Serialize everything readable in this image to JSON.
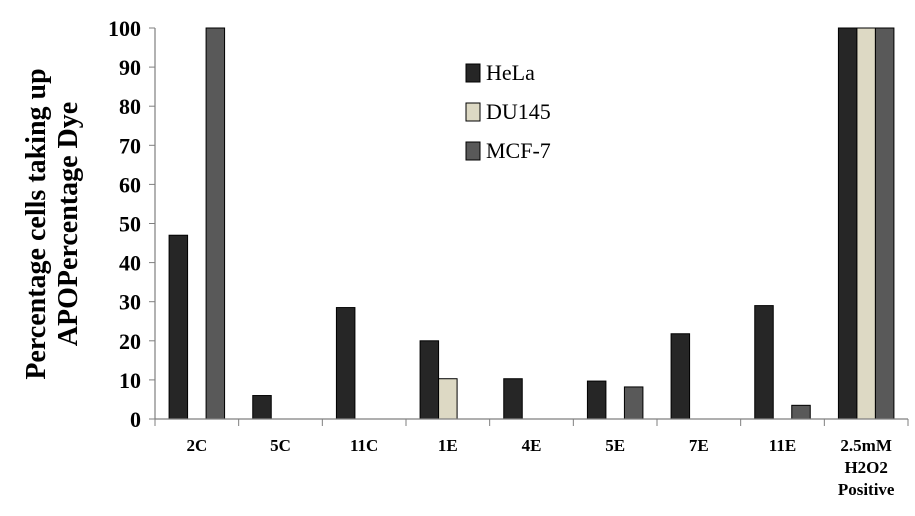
{
  "chart_data": {
    "type": "bar",
    "title": "",
    "ylabel_lines": [
      "Percentage cells taking up",
      "APOPercentage Dye"
    ],
    "xlabel": "",
    "ylim": [
      0,
      100
    ],
    "yticks": [
      0,
      10,
      20,
      30,
      40,
      50,
      60,
      70,
      80,
      90,
      100
    ],
    "categories": [
      [
        "2C"
      ],
      [
        "5C"
      ],
      [
        "11C"
      ],
      [
        "1E"
      ],
      [
        "4E"
      ],
      [
        "5E"
      ],
      [
        "7E"
      ],
      [
        "11E"
      ],
      [
        "2.5mM",
        "H2O2",
        "Positive"
      ]
    ],
    "series": [
      {
        "name": "HeLa",
        "color": "#262626",
        "values": [
          47,
          6,
          28.5,
          20,
          10.3,
          9.7,
          21.8,
          29,
          100
        ]
      },
      {
        "name": "DU145",
        "color": "#ddd9c4",
        "values": [
          0,
          0,
          0,
          10.3,
          0,
          0,
          0,
          0,
          100
        ]
      },
      {
        "name": "MCF-7",
        "color": "#595959",
        "values": [
          100,
          0,
          0,
          0,
          0,
          8.2,
          0,
          3.5,
          100
        ]
      }
    ],
    "legend_position": "top-center",
    "grid": false
  }
}
